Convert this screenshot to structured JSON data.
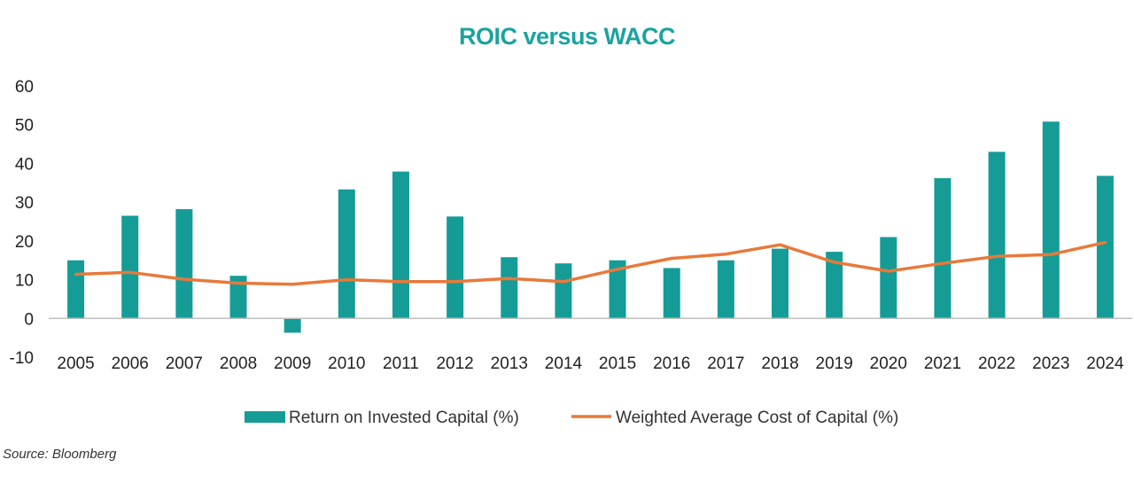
{
  "chart_data": {
    "type": "bar",
    "title": "ROIC versus WACC",
    "xlabel": "",
    "ylabel": "",
    "categories": [
      "2005",
      "2006",
      "2007",
      "2008",
      "2009",
      "2010",
      "2011",
      "2012",
      "2013",
      "2014",
      "2015",
      "2016",
      "2017",
      "2018",
      "2019",
      "2020",
      "2021",
      "2022",
      "2023",
      "2024"
    ],
    "series": [
      {
        "name": "Return on Invested Capital (%)",
        "type": "bar",
        "color": "#159c97",
        "values": [
          15,
          26.5,
          28.2,
          11,
          -3.7,
          33.3,
          37.9,
          26.3,
          15.8,
          14.2,
          15,
          13,
          15,
          18,
          17.2,
          21,
          36.2,
          43,
          50.8,
          36.8
        ]
      },
      {
        "name": "Weighted Average Cost of Capital (%)",
        "type": "line",
        "color": "#e8793a",
        "values": [
          11.4,
          11.9,
          10.1,
          9.1,
          8.8,
          10,
          9.5,
          9.5,
          10.3,
          9.5,
          12.7,
          15.5,
          16.6,
          19,
          14.5,
          12.2,
          14.2,
          16,
          16.5,
          19.6
        ]
      }
    ],
    "y_ticks": [
      "60",
      "50",
      "40",
      "30",
      "20",
      "10",
      "0",
      "-10"
    ],
    "ylim": [
      -10,
      60
    ],
    "grid": false,
    "legend_position": "bottom"
  },
  "title_color": "#1aa3a0",
  "source": "Source: Bloomberg"
}
